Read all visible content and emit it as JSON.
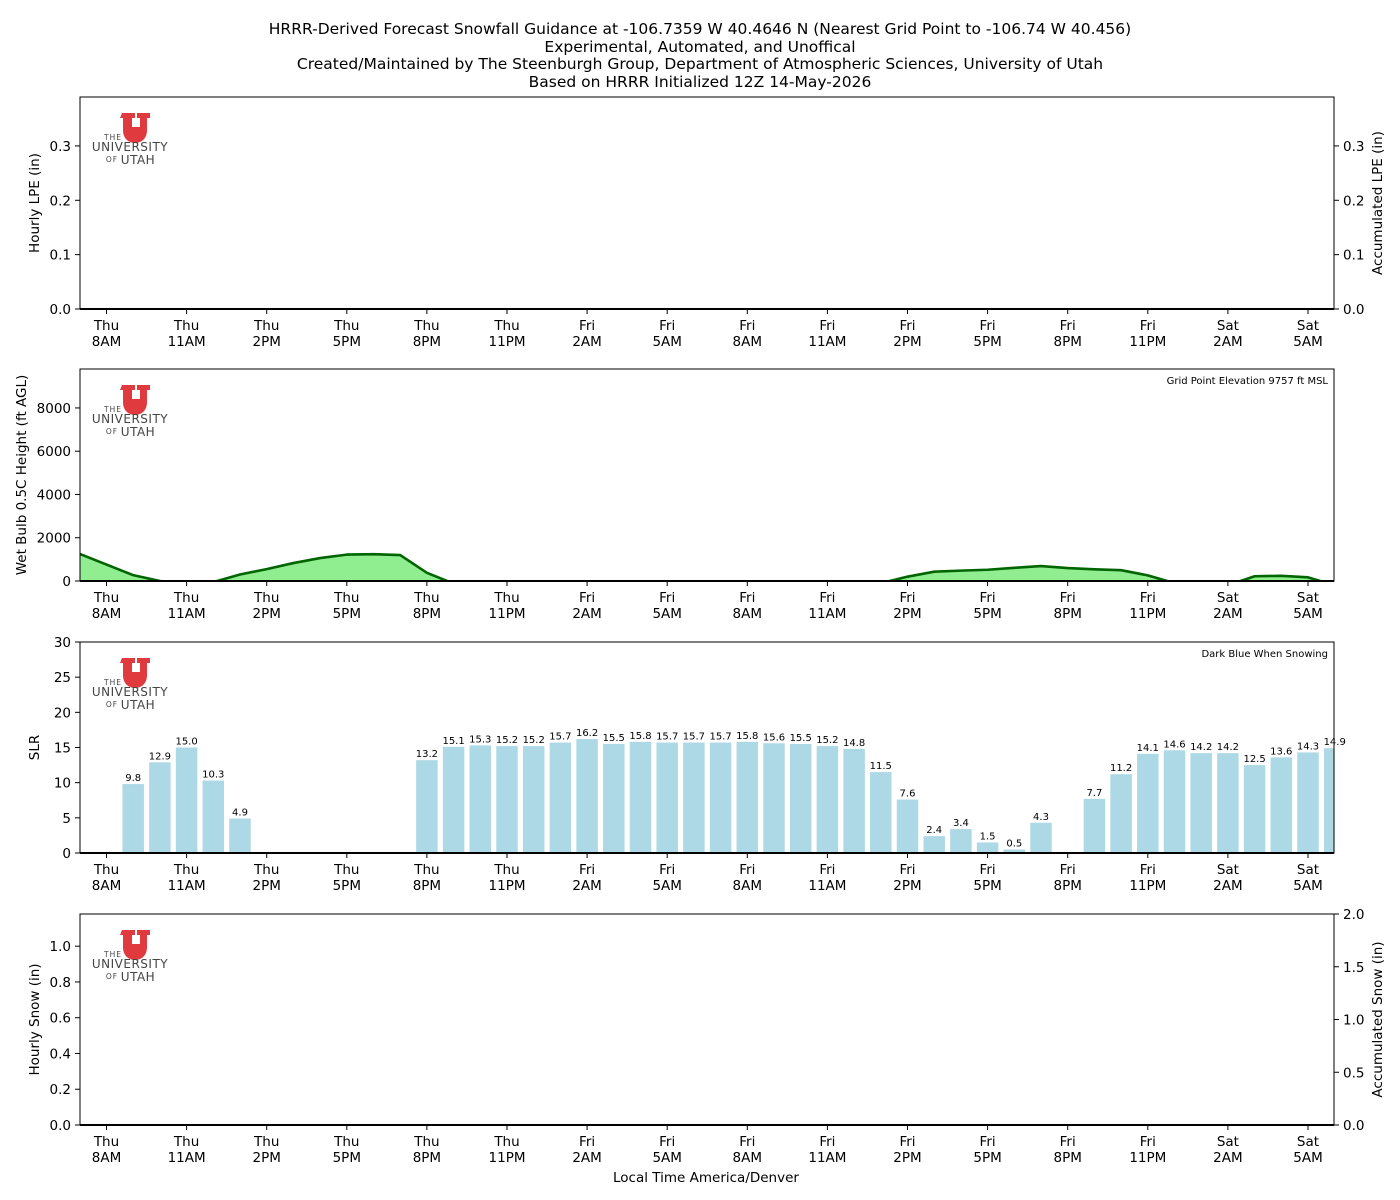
{
  "title": {
    "line1": "HRRR-Derived Forecast Snowfall Guidance at -106.7359 W 40.4646 N (Nearest Grid Point to -106.74 W 40.456)",
    "line2": "Experimental, Automated, and Unoffical",
    "line3": "Created/Maintained by The Steenburgh Group, Department of Atmospheric Sciences, University of Utah",
    "line4": "Based on HRRR Initialized 12Z 14-May-2026"
  },
  "logo": {
    "the": "THE",
    "university": "UNIVERSITY",
    "of": "OF",
    "utah": "UTAH",
    "color": "#e03a3e"
  },
  "time_axis": {
    "xlabel": "Local Time America/Denver",
    "ticks": [
      {
        "day": "Thu",
        "time": "8AM"
      },
      {
        "day": "Thu",
        "time": "11AM"
      },
      {
        "day": "Thu",
        "time": "2PM"
      },
      {
        "day": "Thu",
        "time": "5PM"
      },
      {
        "day": "Thu",
        "time": "8PM"
      },
      {
        "day": "Thu",
        "time": "11PM"
      },
      {
        "day": "Fri",
        "time": "2AM"
      },
      {
        "day": "Fri",
        "time": "5AM"
      },
      {
        "day": "Fri",
        "time": "8AM"
      },
      {
        "day": "Fri",
        "time": "11AM"
      },
      {
        "day": "Fri",
        "time": "2PM"
      },
      {
        "day": "Fri",
        "time": "5PM"
      },
      {
        "day": "Fri",
        "time": "8PM"
      },
      {
        "day": "Fri",
        "time": "11PM"
      },
      {
        "day": "Sat",
        "time": "2AM"
      },
      {
        "day": "Sat",
        "time": "5AM"
      }
    ]
  },
  "chart_data": [
    {
      "type": "bar",
      "ylabel": "Hourly LPE (in)",
      "ylabel_right": "Accumulated LPE (in)",
      "ylim": [
        0,
        0.39
      ],
      "yticks": [
        0.0,
        0.1,
        0.2,
        0.3
      ],
      "yticks_right": [
        0.0,
        0.1,
        0.2,
        0.3
      ],
      "values": []
    },
    {
      "type": "area",
      "ylabel": "Wet Bulb 0.5C Height (ft AGL)",
      "annotation": "Grid Point Elevation 9757 ft MSL",
      "ylim": [
        0,
        9800
      ],
      "yticks": [
        0,
        2000,
        4000,
        6000,
        8000
      ],
      "fill_color": "#90ee90",
      "line_color": "#006400",
      "points": [
        [
          -1,
          1250
        ],
        [
          0,
          760
        ],
        [
          1,
          270
        ],
        [
          2,
          0
        ],
        [
          3,
          -100
        ],
        [
          4,
          -50
        ],
        [
          5,
          300
        ],
        [
          6,
          550
        ],
        [
          7,
          830
        ],
        [
          8,
          1060
        ],
        [
          9,
          1220
        ],
        [
          10,
          1240
        ],
        [
          11,
          1200
        ],
        [
          12,
          380
        ],
        [
          13,
          -120
        ],
        [
          14,
          -400
        ],
        [
          15,
          -500
        ],
        [
          16,
          -500
        ],
        [
          17,
          -500
        ],
        [
          18,
          -500
        ],
        [
          19,
          -500
        ],
        [
          20,
          -500
        ],
        [
          21,
          -500
        ],
        [
          22,
          -500
        ],
        [
          23,
          -500
        ],
        [
          24,
          -500
        ],
        [
          25,
          -500
        ],
        [
          26,
          -500
        ],
        [
          27,
          -500
        ],
        [
          28,
          -500
        ],
        [
          29,
          -100
        ],
        [
          30,
          200
        ],
        [
          31,
          430
        ],
        [
          32,
          480
        ],
        [
          33,
          520
        ],
        [
          34,
          610
        ],
        [
          35,
          690
        ],
        [
          36,
          600
        ],
        [
          37,
          540
        ],
        [
          38,
          500
        ],
        [
          39,
          260
        ],
        [
          40,
          -100
        ],
        [
          41,
          -300
        ],
        [
          42,
          -200
        ],
        [
          43,
          220
        ],
        [
          44,
          240
        ],
        [
          45,
          170
        ],
        [
          46,
          -200
        ]
      ]
    },
    {
      "type": "bar",
      "ylabel": "SLR",
      "annotation": "Dark Blue When Snowing",
      "ylim": [
        0,
        30
      ],
      "yticks": [
        0,
        5,
        10,
        15,
        20,
        25,
        30
      ],
      "bar_color": "#add8e6",
      "x": [
        1,
        2,
        3,
        4,
        5,
        12,
        13,
        14,
        15,
        16,
        17,
        18,
        19,
        20,
        21,
        22,
        23,
        24,
        25,
        26,
        27,
        28,
        29,
        30,
        31,
        32,
        33,
        34,
        35,
        37,
        38,
        39,
        40,
        41,
        42,
        43,
        44,
        45,
        46
      ],
      "values": [
        9.8,
        12.9,
        15.0,
        10.3,
        4.9,
        13.2,
        15.1,
        15.3,
        15.2,
        15.2,
        15.7,
        16.2,
        15.5,
        15.8,
        15.7,
        15.7,
        15.7,
        15.8,
        15.6,
        15.5,
        15.2,
        14.8,
        11.5,
        7.6,
        2.4,
        3.4,
        1.5,
        0.5,
        4.3,
        7.7,
        11.2,
        14.1,
        14.6,
        14.2,
        14.2,
        12.5,
        13.6,
        14.3,
        14.9
      ],
      "labels": [
        "9.8",
        "12.9",
        "15.0",
        "10.3",
        "4.9",
        "13.2",
        "15.1",
        "15.3",
        "15.2",
        "15.2",
        "15.7",
        "16.2",
        "15.5",
        "15.8",
        "15.7",
        "15.7",
        "15.7",
        "15.8",
        "15.6",
        "15.5",
        "15.2",
        "14.8",
        "11.5",
        "7.6",
        "2.4",
        "3.4",
        "1.5",
        "0.5",
        "4.3",
        "7.7",
        "11.2",
        "14.1",
        "14.6",
        "14.2",
        "14.2",
        "12.5",
        "13.6",
        "14.3",
        "14.9"
      ]
    },
    {
      "type": "bar",
      "ylabel": "Hourly Snow (in)",
      "ylabel_right": "Accumulated Snow (in)",
      "ylim": [
        0,
        1.18
      ],
      "yticks": [
        0.0,
        0.2,
        0.4,
        0.6,
        0.8,
        1.0
      ],
      "ylim_right": [
        0,
        2.0
      ],
      "yticks_right": [
        0.0,
        0.5,
        1.0,
        1.5,
        2.0
      ],
      "values": []
    }
  ]
}
